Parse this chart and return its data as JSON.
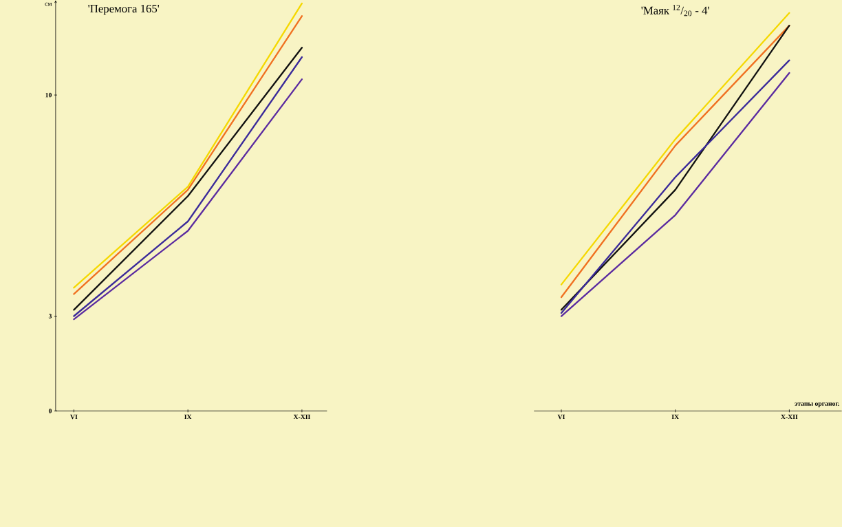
{
  "chart_data": [
    {
      "type": "line",
      "title": "'Перемога 165'",
      "ylabel": "см",
      "categories": [
        "VI",
        "IX",
        "X-XII"
      ],
      "ylim": [
        0,
        13
      ],
      "yticks": [
        0,
        3,
        10
      ],
      "grid": false,
      "marker": "none",
      "line_style": "solid",
      "series": [
        {
          "color": "#f5d800",
          "values": [
            3.9,
            7.1,
            12.9
          ]
        },
        {
          "color": "#f07020",
          "values": [
            3.7,
            7.0,
            12.5
          ]
        },
        {
          "color": "#111111",
          "values": [
            3.2,
            6.8,
            11.5
          ]
        },
        {
          "color": "#3a2a9a",
          "values": [
            3.0,
            6.0,
            11.2
          ]
        },
        {
          "color": "#5a2aa0",
          "values": [
            2.9,
            5.7,
            10.5
          ]
        }
      ]
    },
    {
      "type": "line",
      "title": "'Маяк $^{12}$/$_{20}$ - 4'",
      "xlabel": "этапы органог.",
      "categories": [
        "VI",
        "IX",
        "X-XII"
      ],
      "ylim": [
        0,
        13
      ],
      "yticks": [
        0,
        3,
        10
      ],
      "tick_labels": "x",
      "grid": false,
      "marker": "none",
      "line_style": "solid",
      "series": [
        {
          "color": "#f5d800",
          "values": [
            4.0,
            8.6,
            12.6
          ]
        },
        {
          "color": "#f07020",
          "values": [
            3.6,
            8.4,
            12.2
          ]
        },
        {
          "color": "#111111",
          "values": [
            3.2,
            7.0,
            12.2
          ]
        },
        {
          "color": "#3a2a9a",
          "values": [
            3.1,
            7.4,
            11.1
          ]
        },
        {
          "color": "#5a2aa0",
          "values": [
            3.0,
            6.2,
            10.7
          ]
        }
      ]
    }
  ]
}
